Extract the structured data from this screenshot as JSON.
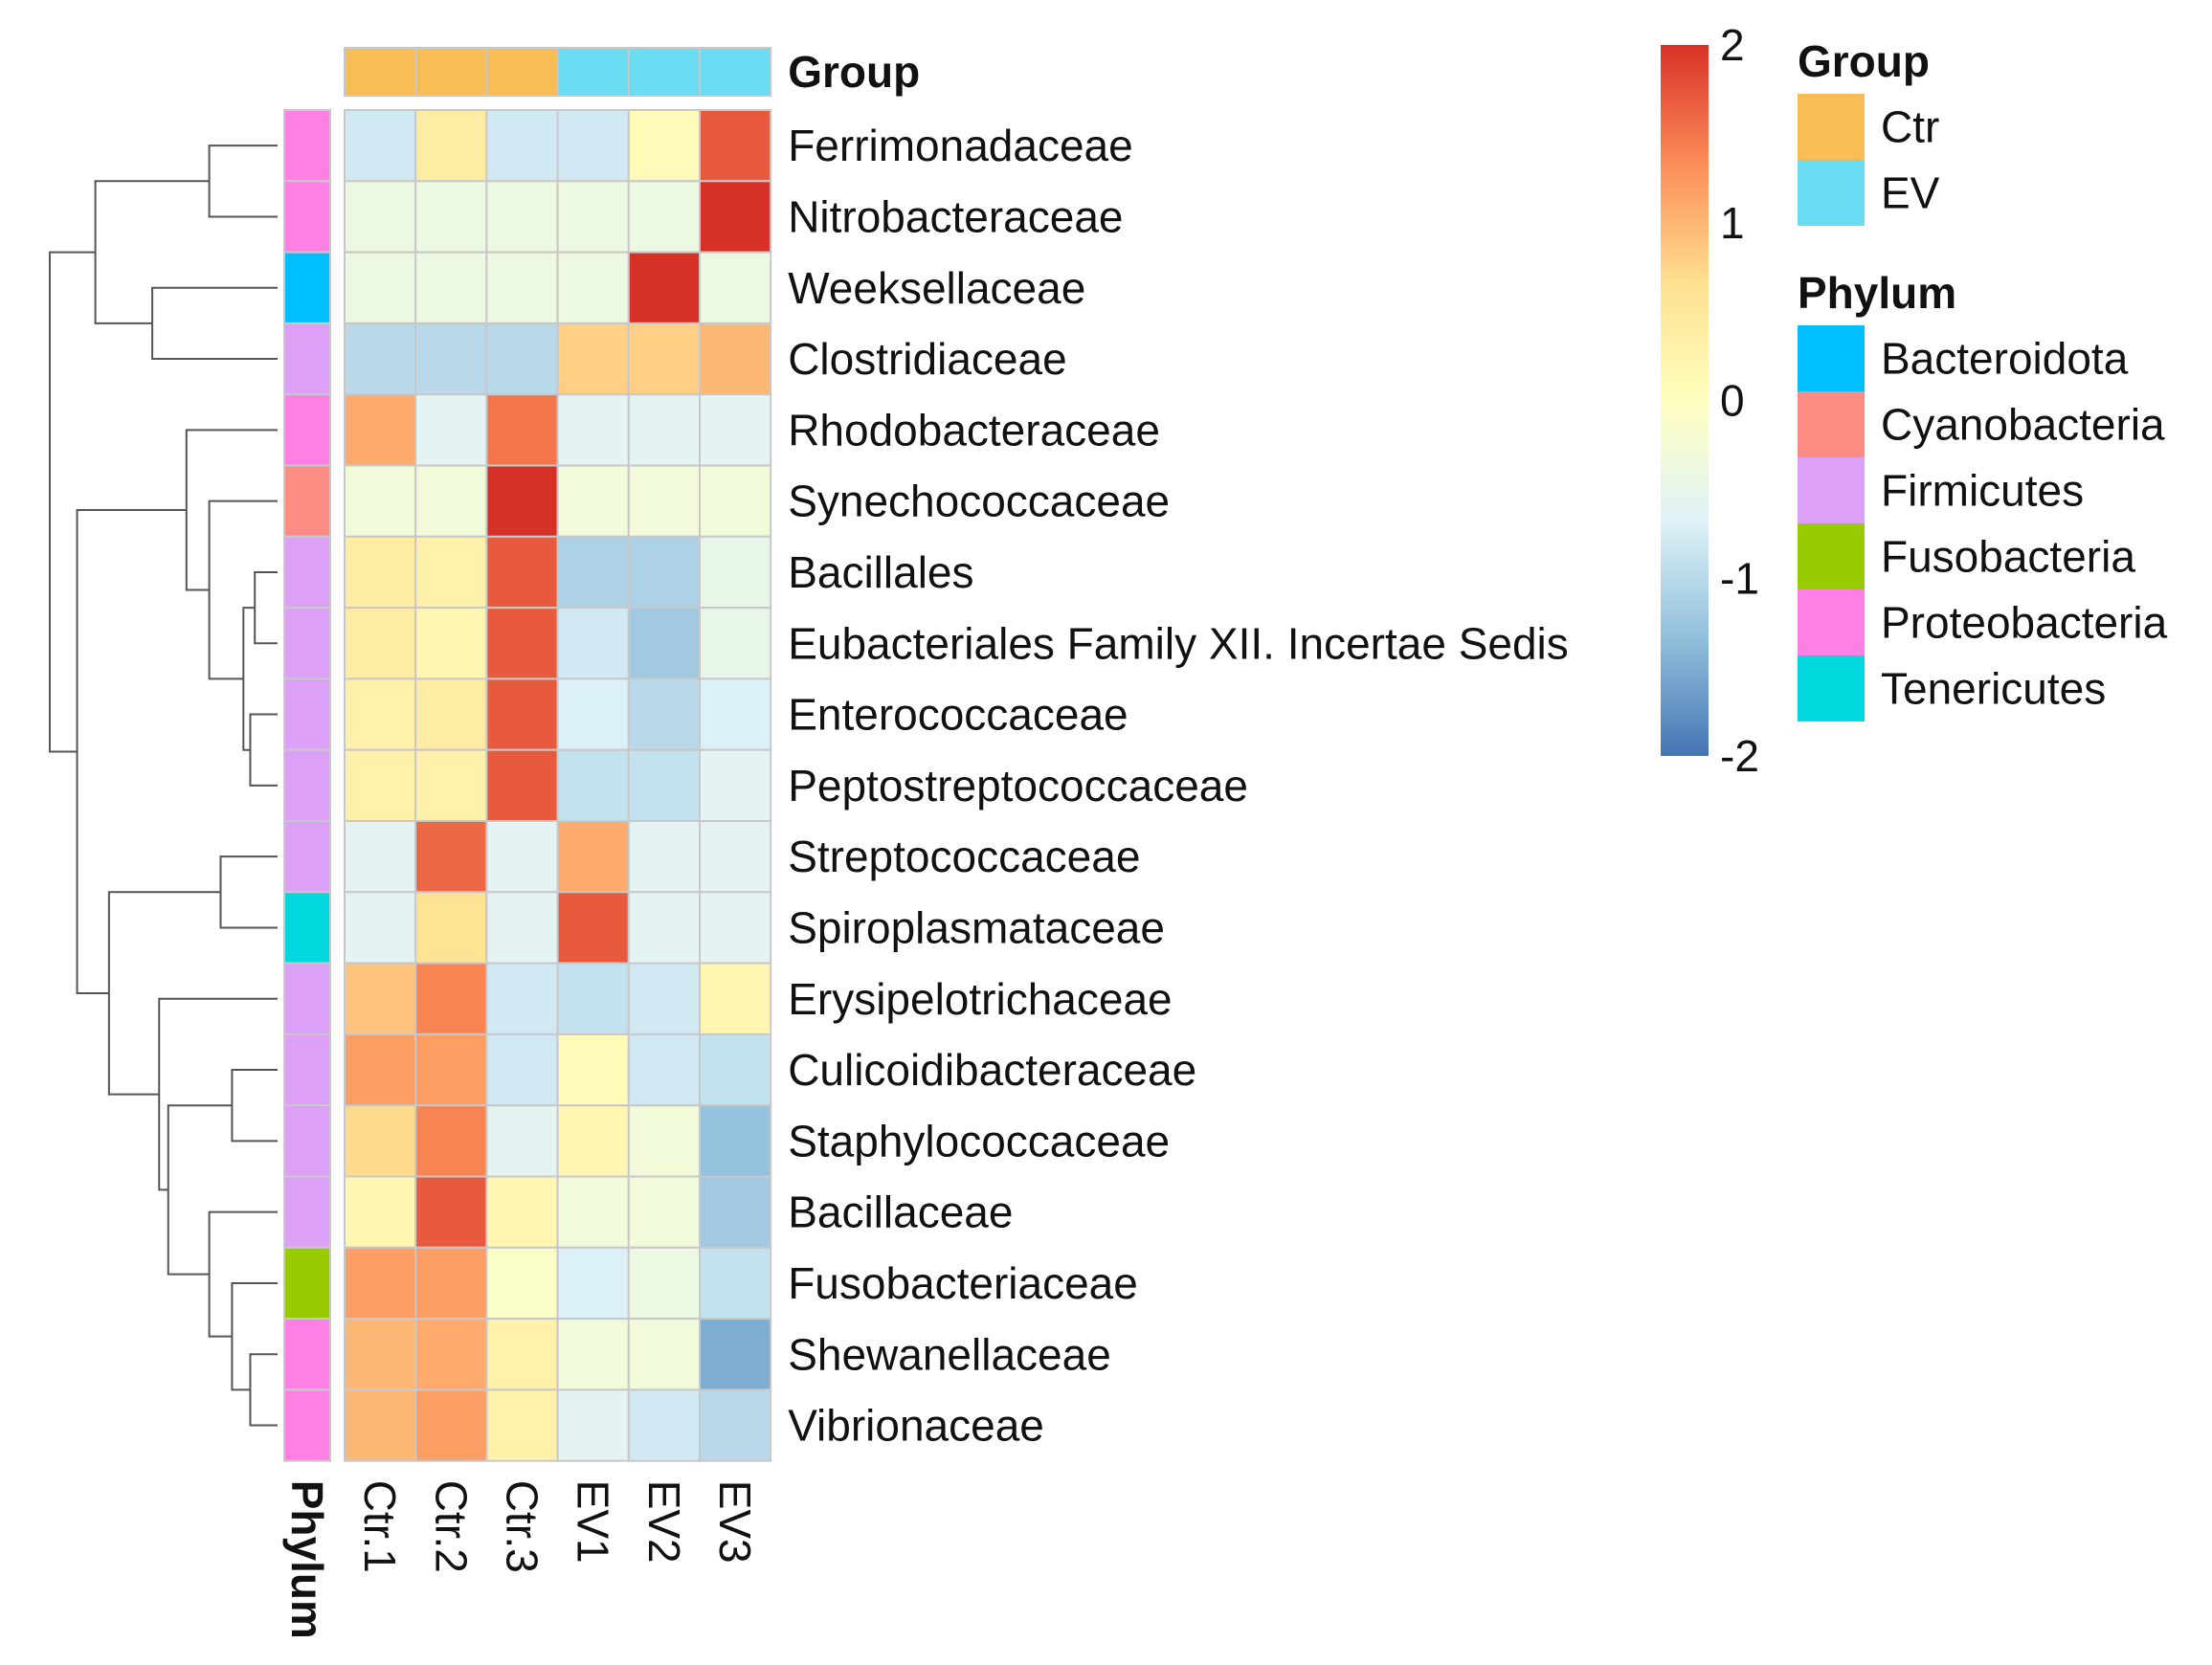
{
  "chart_data": {
    "type": "heatmap",
    "columns": [
      "Ctr.1",
      "Ctr.2",
      "Ctr.3",
      "EV1",
      "EV2",
      "EV3"
    ],
    "column_groups": [
      "Ctr",
      "Ctr",
      "Ctr",
      "EV",
      "EV",
      "EV"
    ],
    "rows": [
      "Ferrimonadaceae",
      "Nitrobacteraceae",
      "Weeksellaceae",
      "Clostridiaceae",
      "Rhodobacteraceae",
      "Synechococcaceae",
      "Bacillales",
      "Eubacteriales Family XII. Incertae Sedis",
      "Enterococcaceae",
      "Peptostreptococcaceae",
      "Streptococcaceae",
      "Spiroplasmataceae",
      "Erysipelotrichaceae",
      "Culicoidibacteraceae",
      "Staphylococcaceae",
      "Bacillaceae",
      "Fusobacteriaceae",
      "Shewanellaceae",
      "Vibrionaceae"
    ],
    "row_phylum": [
      "Proteobacteria",
      "Proteobacteria",
      "Bacteroidota",
      "Firmicutes",
      "Proteobacteria",
      "Cyanobacteria",
      "Firmicutes",
      "Firmicutes",
      "Firmicutes",
      "Firmicutes",
      "Firmicutes",
      "Tenericutes",
      "Firmicutes",
      "Firmicutes",
      "Firmicutes",
      "Firmicutes",
      "Fusobacteria",
      "Proteobacteria",
      "Proteobacteria"
    ],
    "values": [
      [
        -0.8,
        0.4,
        -0.8,
        -0.8,
        0.1,
        1.7
      ],
      [
        -0.4,
        -0.4,
        -0.4,
        -0.4,
        -0.4,
        2.0
      ],
      [
        -0.4,
        -0.4,
        -0.4,
        -0.4,
        2.0,
        -0.4
      ],
      [
        -1.0,
        -1.0,
        -1.0,
        0.8,
        0.8,
        1.0
      ],
      [
        1.1,
        -0.6,
        1.5,
        -0.6,
        -0.6,
        -0.6
      ],
      [
        -0.3,
        -0.3,
        2.0,
        -0.3,
        -0.3,
        -0.3
      ],
      [
        0.4,
        0.3,
        1.7,
        -1.1,
        -1.1,
        -0.5
      ],
      [
        0.4,
        0.2,
        1.7,
        -0.8,
        -1.2,
        -0.5
      ],
      [
        0.3,
        0.4,
        1.7,
        -0.7,
        -1.0,
        -0.7
      ],
      [
        0.3,
        0.3,
        1.7,
        -0.9,
        -0.9,
        -0.6
      ],
      [
        -0.6,
        1.6,
        -0.6,
        1.1,
        -0.6,
        -0.6
      ],
      [
        -0.6,
        0.6,
        -0.6,
        1.7,
        -0.6,
        -0.6
      ],
      [
        0.9,
        1.4,
        -0.8,
        -0.9,
        -0.8,
        0.2
      ],
      [
        1.2,
        1.2,
        -0.8,
        0.1,
        -0.8,
        -0.9
      ],
      [
        0.7,
        1.4,
        -0.6,
        0.2,
        -0.3,
        -1.3
      ],
      [
        0.2,
        1.7,
        0.2,
        -0.3,
        -0.3,
        -1.2
      ],
      [
        1.2,
        1.2,
        -0.1,
        -0.7,
        -0.4,
        -0.9
      ],
      [
        1.0,
        1.1,
        0.3,
        -0.3,
        -0.3,
        -1.5
      ],
      [
        1.0,
        1.2,
        0.3,
        -0.6,
        -0.8,
        -1.0
      ]
    ],
    "colorscale": {
      "min": -2,
      "max": 2,
      "ticks": [
        {
          "value": 2,
          "label": "2"
        },
        {
          "value": 1,
          "label": "1"
        },
        {
          "value": 0,
          "label": "0"
        },
        {
          "value": -1,
          "label": "-1"
        },
        {
          "value": -2,
          "label": "-2"
        }
      ],
      "stops": [
        "#4575b4",
        "#91bfdb",
        "#e0f3f8",
        "#ffffbf",
        "#fee090",
        "#fc8d59",
        "#d73027"
      ]
    },
    "group_annotation_label": "Group",
    "phylum_annotation_label": "Phylum",
    "legend": {
      "group_title": "Group",
      "groups": [
        {
          "name": "Ctr",
          "color": "#F8BE55"
        },
        {
          "name": "EV",
          "color": "#6BDDF3"
        }
      ],
      "phylum_title": "Phylum",
      "phyla": [
        {
          "name": "Bacteroidota",
          "color": "#00BFFF"
        },
        {
          "name": "Cyanobacteria",
          "color": "#FA8C84"
        },
        {
          "name": "Firmicutes",
          "color": "#DDA0F7"
        },
        {
          "name": "Fusobacteria",
          "color": "#99CC00"
        },
        {
          "name": "Proteobacteria",
          "color": "#FF80E5"
        },
        {
          "name": "Tenericutes",
          "color": "#00D8DE"
        }
      ]
    },
    "dendrogram": {
      "leaf_order": [
        0,
        1,
        2,
        3,
        4,
        5,
        6,
        7,
        8,
        9,
        10,
        11,
        12,
        13,
        14,
        15,
        16,
        17,
        18
      ],
      "merges": [
        [
          0,
          1,
          0.3
        ],
        [
          2,
          3,
          0.55
        ],
        [
          -1,
          -2,
          0.8
        ],
        [
          6,
          7,
          0.1
        ],
        [
          8,
          9,
          0.12
        ],
        [
          -4,
          -5,
          0.15
        ],
        [
          5,
          -6,
          0.3
        ],
        [
          4,
          -7,
          0.4
        ],
        [
          10,
          11,
          0.25
        ],
        [
          13,
          14,
          0.2
        ],
        [
          17,
          18,
          0.12
        ],
        [
          16,
          -11,
          0.2
        ],
        [
          15,
          -12,
          0.3
        ],
        [
          -10,
          -13,
          0.48
        ],
        [
          12,
          -14,
          0.52
        ],
        [
          -9,
          -15,
          0.74
        ],
        [
          -8,
          -16,
          0.88
        ],
        [
          -3,
          -17,
          1.0
        ]
      ]
    }
  }
}
